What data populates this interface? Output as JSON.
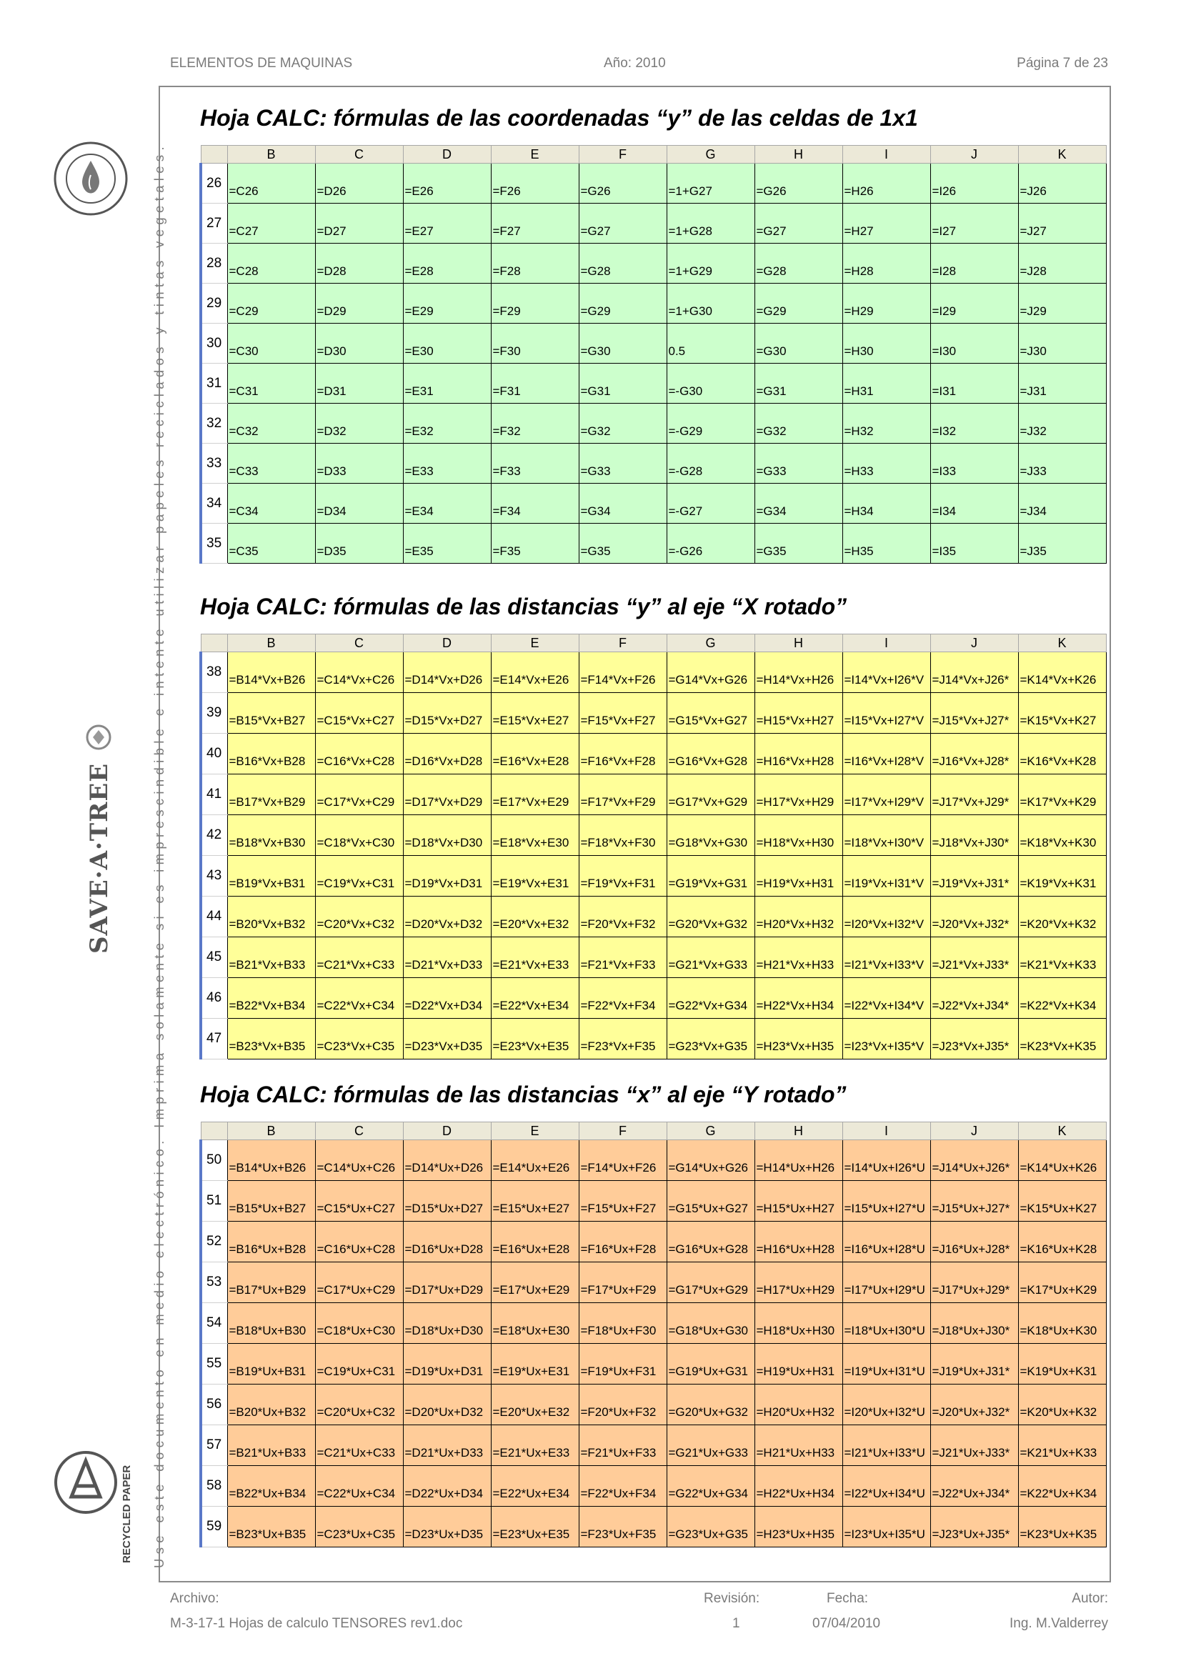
{
  "header": {
    "left": "ELEMENTOS DE MAQUINAS",
    "center": "Año: 2010",
    "right": "Página 7 de 23"
  },
  "side_text": "Use este documento en medio electrónico. Imprima solamente si es imprescindible e intente utilizar papeles reciclados y tintas vegetales.",
  "logos": {
    "top": "VEGETABLE BASED INK",
    "middle": "SAVE·A·TREE",
    "bottom": "RECYCLED PAPER"
  },
  "sections": [
    {
      "title": "Hoja CALC: fórmulas de las coordenadas “y” de las celdas de 1x1",
      "color": "#ccffcc",
      "columns": [
        "B",
        "C",
        "D",
        "E",
        "F",
        "G",
        "H",
        "I",
        "J",
        "K"
      ],
      "rows": [
        {
          "n": "26",
          "cells": [
            "=C26",
            "=D26",
            "=E26",
            "=F26",
            "=G26",
            "=1+G27",
            "=G26",
            "=H26",
            "=I26",
            "=J26"
          ]
        },
        {
          "n": "27",
          "cells": [
            "=C27",
            "=D27",
            "=E27",
            "=F27",
            "=G27",
            "=1+G28",
            "=G27",
            "=H27",
            "=I27",
            "=J27"
          ]
        },
        {
          "n": "28",
          "cells": [
            "=C28",
            "=D28",
            "=E28",
            "=F28",
            "=G28",
            "=1+G29",
            "=G28",
            "=H28",
            "=I28",
            "=J28"
          ]
        },
        {
          "n": "29",
          "cells": [
            "=C29",
            "=D29",
            "=E29",
            "=F29",
            "=G29",
            "=1+G30",
            "=G29",
            "=H29",
            "=I29",
            "=J29"
          ]
        },
        {
          "n": "30",
          "cells": [
            "=C30",
            "=D30",
            "=E30",
            "=F30",
            "=G30",
            "0.5",
            "=G30",
            "=H30",
            "=I30",
            "=J30"
          ]
        },
        {
          "n": "31",
          "cells": [
            "=C31",
            "=D31",
            "=E31",
            "=F31",
            "=G31",
            "=-G30",
            "=G31",
            "=H31",
            "=I31",
            "=J31"
          ]
        },
        {
          "n": "32",
          "cells": [
            "=C32",
            "=D32",
            "=E32",
            "=F32",
            "=G32",
            "=-G29",
            "=G32",
            "=H32",
            "=I32",
            "=J32"
          ]
        },
        {
          "n": "33",
          "cells": [
            "=C33",
            "=D33",
            "=E33",
            "=F33",
            "=G33",
            "=-G28",
            "=G33",
            "=H33",
            "=I33",
            "=J33"
          ]
        },
        {
          "n": "34",
          "cells": [
            "=C34",
            "=D34",
            "=E34",
            "=F34",
            "=G34",
            "=-G27",
            "=G34",
            "=H34",
            "=I34",
            "=J34"
          ]
        },
        {
          "n": "35",
          "cells": [
            "=C35",
            "=D35",
            "=E35",
            "=F35",
            "=G35",
            "=-G26",
            "=G35",
            "=H35",
            "=I35",
            "=J35"
          ]
        }
      ]
    },
    {
      "title": "Hoja CALC: fórmulas de las distancias “y” al eje “X rotado”",
      "color": "#ffff99",
      "columns": [
        "B",
        "C",
        "D",
        "E",
        "F",
        "G",
        "H",
        "I",
        "J",
        "K"
      ],
      "rows": [
        {
          "n": "38",
          "cells": [
            "=B14*Vx+B26",
            "=C14*Vx+C26",
            "=D14*Vx+D26",
            "=E14*Vx+E26",
            "=F14*Vx+F26",
            "=G14*Vx+G26",
            "=H14*Vx+H26",
            "=I14*Vx+I26*V",
            "=J14*Vx+J26*",
            "=K14*Vx+K26"
          ]
        },
        {
          "n": "39",
          "cells": [
            "=B15*Vx+B27",
            "=C15*Vx+C27",
            "=D15*Vx+D27",
            "=E15*Vx+E27",
            "=F15*Vx+F27",
            "=G15*Vx+G27",
            "=H15*Vx+H27",
            "=I15*Vx+I27*V",
            "=J15*Vx+J27*",
            "=K15*Vx+K27"
          ]
        },
        {
          "n": "40",
          "cells": [
            "=B16*Vx+B28",
            "=C16*Vx+C28",
            "=D16*Vx+D28",
            "=E16*Vx+E28",
            "=F16*Vx+F28",
            "=G16*Vx+G28",
            "=H16*Vx+H28",
            "=I16*Vx+I28*V",
            "=J16*Vx+J28*",
            "=K16*Vx+K28"
          ]
        },
        {
          "n": "41",
          "cells": [
            "=B17*Vx+B29",
            "=C17*Vx+C29",
            "=D17*Vx+D29",
            "=E17*Vx+E29",
            "=F17*Vx+F29",
            "=G17*Vx+G29",
            "=H17*Vx+H29",
            "=I17*Vx+I29*V",
            "=J17*Vx+J29*",
            "=K17*Vx+K29"
          ]
        },
        {
          "n": "42",
          "cells": [
            "=B18*Vx+B30",
            "=C18*Vx+C30",
            "=D18*Vx+D30",
            "=E18*Vx+E30",
            "=F18*Vx+F30",
            "=G18*Vx+G30",
            "=H18*Vx+H30",
            "=I18*Vx+I30*V",
            "=J18*Vx+J30*",
            "=K18*Vx+K30"
          ]
        },
        {
          "n": "43",
          "cells": [
            "=B19*Vx+B31",
            "=C19*Vx+C31",
            "=D19*Vx+D31",
            "=E19*Vx+E31",
            "=F19*Vx+F31",
            "=G19*Vx+G31",
            "=H19*Vx+H31",
            "=I19*Vx+I31*V",
            "=J19*Vx+J31*",
            "=K19*Vx+K31"
          ]
        },
        {
          "n": "44",
          "cells": [
            "=B20*Vx+B32",
            "=C20*Vx+C32",
            "=D20*Vx+D32",
            "=E20*Vx+E32",
            "=F20*Vx+F32",
            "=G20*Vx+G32",
            "=H20*Vx+H32",
            "=I20*Vx+I32*V",
            "=J20*Vx+J32*",
            "=K20*Vx+K32"
          ]
        },
        {
          "n": "45",
          "cells": [
            "=B21*Vx+B33",
            "=C21*Vx+C33",
            "=D21*Vx+D33",
            "=E21*Vx+E33",
            "=F21*Vx+F33",
            "=G21*Vx+G33",
            "=H21*Vx+H33",
            "=I21*Vx+I33*V",
            "=J21*Vx+J33*",
            "=K21*Vx+K33"
          ]
        },
        {
          "n": "46",
          "cells": [
            "=B22*Vx+B34",
            "=C22*Vx+C34",
            "=D22*Vx+D34",
            "=E22*Vx+E34",
            "=F22*Vx+F34",
            "=G22*Vx+G34",
            "=H22*Vx+H34",
            "=I22*Vx+I34*V",
            "=J22*Vx+J34*",
            "=K22*Vx+K34"
          ]
        },
        {
          "n": "47",
          "cells": [
            "=B23*Vx+B35",
            "=C23*Vx+C35",
            "=D23*Vx+D35",
            "=E23*Vx+E35",
            "=F23*Vx+F35",
            "=G23*Vx+G35",
            "=H23*Vx+H35",
            "=I23*Vx+I35*V",
            "=J23*Vx+J35*",
            "=K23*Vx+K35"
          ]
        }
      ]
    },
    {
      "title": "Hoja CALC: fórmulas de las distancias “x” al eje “Y rotado”",
      "color": "#ffcc99",
      "columns": [
        "B",
        "C",
        "D",
        "E",
        "F",
        "G",
        "H",
        "I",
        "J",
        "K"
      ],
      "rows": [
        {
          "n": "50",
          "cells": [
            "=B14*Ux+B26",
            "=C14*Ux+C26",
            "=D14*Ux+D26",
            "=E14*Ux+E26",
            "=F14*Ux+F26",
            "=G14*Ux+G26",
            "=H14*Ux+H26",
            "=I14*Ux+I26*U",
            "=J14*Ux+J26*",
            "=K14*Ux+K26"
          ]
        },
        {
          "n": "51",
          "cells": [
            "=B15*Ux+B27",
            "=C15*Ux+C27",
            "=D15*Ux+D27",
            "=E15*Ux+E27",
            "=F15*Ux+F27",
            "=G15*Ux+G27",
            "=H15*Ux+H27",
            "=I15*Ux+I27*U",
            "=J15*Ux+J27*",
            "=K15*Ux+K27"
          ]
        },
        {
          "n": "52",
          "cells": [
            "=B16*Ux+B28",
            "=C16*Ux+C28",
            "=D16*Ux+D28",
            "=E16*Ux+E28",
            "=F16*Ux+F28",
            "=G16*Ux+G28",
            "=H16*Ux+H28",
            "=I16*Ux+I28*U",
            "=J16*Ux+J28*",
            "=K16*Ux+K28"
          ]
        },
        {
          "n": "53",
          "cells": [
            "=B17*Ux+B29",
            "=C17*Ux+C29",
            "=D17*Ux+D29",
            "=E17*Ux+E29",
            "=F17*Ux+F29",
            "=G17*Ux+G29",
            "=H17*Ux+H29",
            "=I17*Ux+I29*U",
            "=J17*Ux+J29*",
            "=K17*Ux+K29"
          ]
        },
        {
          "n": "54",
          "cells": [
            "=B18*Ux+B30",
            "=C18*Ux+C30",
            "=D18*Ux+D30",
            "=E18*Ux+E30",
            "=F18*Ux+F30",
            "=G18*Ux+G30",
            "=H18*Ux+H30",
            "=I18*Ux+I30*U",
            "=J18*Ux+J30*",
            "=K18*Ux+K30"
          ]
        },
        {
          "n": "55",
          "cells": [
            "=B19*Ux+B31",
            "=C19*Ux+C31",
            "=D19*Ux+D31",
            "=E19*Ux+E31",
            "=F19*Ux+F31",
            "=G19*Ux+G31",
            "=H19*Ux+H31",
            "=I19*Ux+I31*U",
            "=J19*Ux+J31*",
            "=K19*Ux+K31"
          ]
        },
        {
          "n": "56",
          "cells": [
            "=B20*Ux+B32",
            "=C20*Ux+C32",
            "=D20*Ux+D32",
            "=E20*Ux+E32",
            "=F20*Ux+F32",
            "=G20*Ux+G32",
            "=H20*Ux+H32",
            "=I20*Ux+I32*U",
            "=J20*Ux+J32*",
            "=K20*Ux+K32"
          ]
        },
        {
          "n": "57",
          "cells": [
            "=B21*Ux+B33",
            "=C21*Ux+C33",
            "=D21*Ux+D33",
            "=E21*Ux+E33",
            "=F21*Ux+F33",
            "=G21*Ux+G33",
            "=H21*Ux+H33",
            "=I21*Ux+I33*U",
            "=J21*Ux+J33*",
            "=K21*Ux+K33"
          ]
        },
        {
          "n": "58",
          "cells": [
            "=B22*Ux+B34",
            "=C22*Ux+C34",
            "=D22*Ux+D34",
            "=E22*Ux+E34",
            "=F22*Ux+F34",
            "=G22*Ux+G34",
            "=H22*Ux+H34",
            "=I22*Ux+I34*U",
            "=J22*Ux+J34*",
            "=K22*Ux+K34"
          ]
        },
        {
          "n": "59",
          "cells": [
            "=B23*Ux+B35",
            "=C23*Ux+C35",
            "=D23*Ux+D35",
            "=E23*Ux+E35",
            "=F23*Ux+F35",
            "=G23*Ux+G35",
            "=H23*Ux+H35",
            "=I23*Ux+I35*U",
            "=J23*Ux+J35*",
            "=K23*Ux+K35"
          ]
        }
      ]
    }
  ],
  "footer": {
    "archivo_label": "Archivo:",
    "archivo_value": "M-3-17-1 Hojas de calculo TENSORES rev1.doc",
    "revision_label": "Revisión:",
    "revision_value": "1",
    "fecha_label": "Fecha:",
    "fecha_value": "07/04/2010",
    "autor_label": "Autor:",
    "autor_value": "Ing. M.Valderrey"
  }
}
